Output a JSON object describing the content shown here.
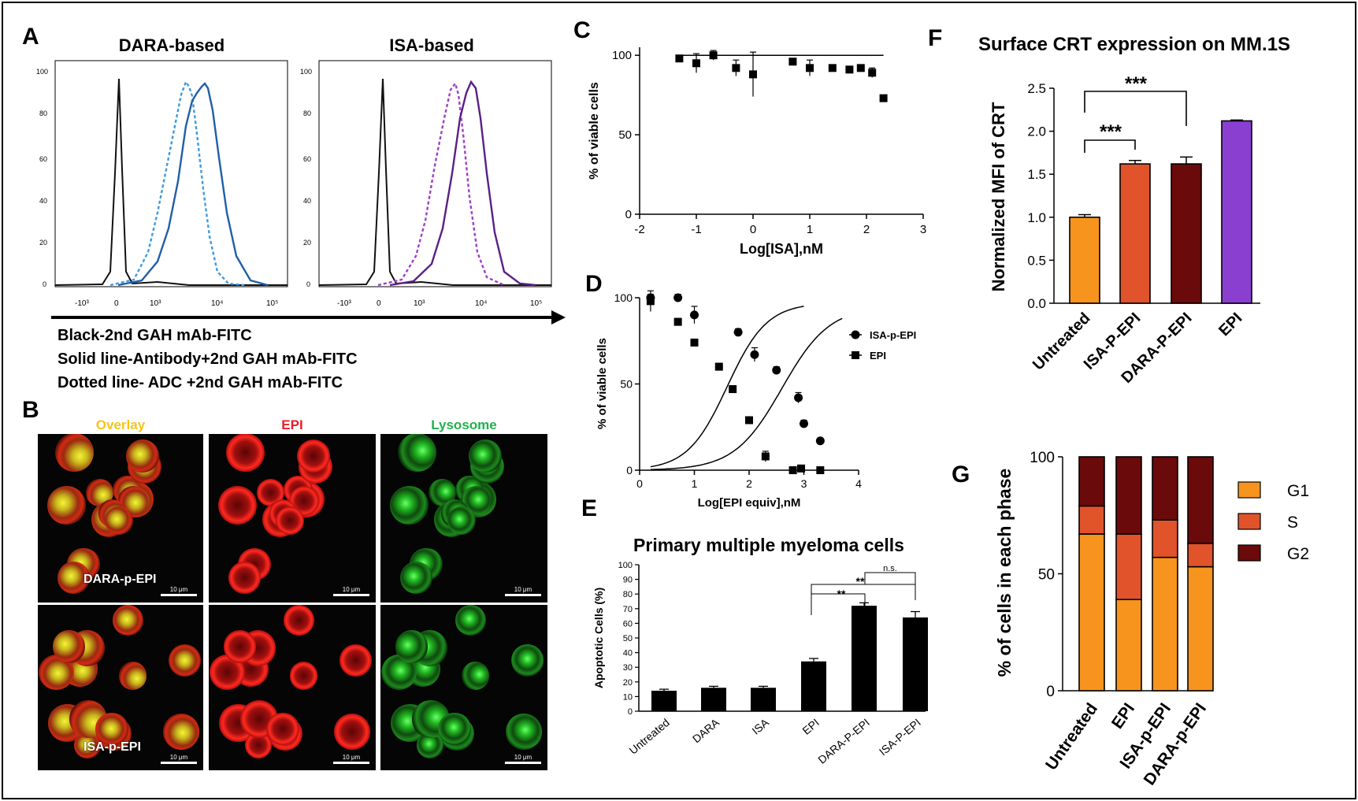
{
  "panel_letters": [
    "A",
    "B",
    "C",
    "D",
    "E",
    "F",
    "G"
  ],
  "panelA": {
    "titles": [
      "DARA-based",
      "ISA-based"
    ],
    "y_ticks": [
      "0",
      "20",
      "40",
      "60",
      "80",
      "100"
    ],
    "x_ticks": [
      "-10³",
      "0",
      "10³",
      "10⁴",
      "10⁵"
    ],
    "legend": [
      "Black-2nd GAH mAb-FITC",
      "Solid line-Antibody+2nd GAH mAb-FITC",
      "Dotted line- ADC +2nd GAH mAb-FITC"
    ]
  },
  "panelB": {
    "columns": [
      "Overlay",
      "EPI",
      "Lysosome"
    ],
    "column_colors": [
      "#f5c518",
      "#e8202a",
      "#1fb24a"
    ],
    "rows": [
      "DARA-p-EPI",
      "ISA-p-EPI"
    ],
    "scale_bar": "10 μm"
  },
  "colors": {
    "dara_solid": "#1f5fa8",
    "dara_dotted": "#3d9ae0",
    "isa_solid": "#5a1f86",
    "isa_dotted": "#a03ec8",
    "untreated": "#f7941d",
    "isa_p_epi": "#e0532b",
    "dara_p_epi": "#6b0a0a",
    "epi": "#8a3fd1",
    "g1": "#f7941d",
    "s": "#e0532b",
    "g2": "#6b0a0a"
  },
  "chart_data": [
    {
      "panel": "C",
      "type": "scatter",
      "xlabel": "Log[ISA],nM",
      "ylabel": "% of viable cells",
      "xlim": [
        -2,
        3
      ],
      "ylim": [
        0,
        110
      ],
      "x_ticks": [
        -2,
        -1,
        0,
        1,
        2,
        3
      ],
      "y_ticks": [
        0,
        50,
        100
      ],
      "points": [
        {
          "x": -1.3,
          "y": 98,
          "err": 2
        },
        {
          "x": -1.0,
          "y": 95,
          "err": 6
        },
        {
          "x": -0.7,
          "y": 100,
          "err": 3
        },
        {
          "x": -0.3,
          "y": 92,
          "err": 5
        },
        {
          "x": 0.0,
          "y": 88,
          "err": 14
        },
        {
          "x": 0.7,
          "y": 96,
          "err": 2
        },
        {
          "x": 1.0,
          "y": 92,
          "err": 5
        },
        {
          "x": 1.4,
          "y": 92,
          "err": 2
        },
        {
          "x": 1.7,
          "y": 91,
          "err": 2
        },
        {
          "x": 1.9,
          "y": 92,
          "err": 2
        },
        {
          "x": 2.1,
          "y": 89,
          "err": 3
        },
        {
          "x": 2.3,
          "y": 73,
          "err": 1
        }
      ],
      "fit": {
        "top": 100,
        "bottom": 0,
        "ec50": 3.6,
        "hill": 0.7,
        "x_range": [
          -1.3,
          2.3
        ]
      }
    },
    {
      "panel": "D",
      "type": "scatter",
      "xlabel": "Log[EPI equiv],nM",
      "ylabel": "% of viable cells",
      "xlim": [
        0,
        4
      ],
      "ylim": [
        0,
        100
      ],
      "x_ticks": [
        0,
        1,
        2,
        3,
        4
      ],
      "y_ticks": [
        0,
        50,
        100
      ],
      "series": [
        {
          "name": "ISA-p-EPI",
          "marker": "circle",
          "points": [
            {
              "x": 0.2,
              "y": 100,
              "err": 2
            },
            {
              "x": 0.7,
              "y": 100,
              "err": 2
            },
            {
              "x": 1.0,
              "y": 90,
              "err": 5
            },
            {
              "x": 1.8,
              "y": 80,
              "err": 2
            },
            {
              "x": 2.1,
              "y": 67,
              "err": 4
            },
            {
              "x": 2.5,
              "y": 58,
              "err": 2
            },
            {
              "x": 2.9,
              "y": 42,
              "err": 3
            },
            {
              "x": 3.0,
              "y": 27,
              "err": 2
            },
            {
              "x": 3.3,
              "y": 17,
              "err": 1
            }
          ],
          "fit": {
            "top": 95,
            "bottom": 0,
            "logec50": 2.6,
            "hill": -1.0,
            "x_range": [
              0.2,
              3.7
            ]
          }
        },
        {
          "name": "EPI",
          "marker": "square",
          "points": [
            {
              "x": 0.2,
              "y": 98,
              "err": 6
            },
            {
              "x": 0.7,
              "y": 86,
              "err": 2
            },
            {
              "x": 1.0,
              "y": 74,
              "err": 2
            },
            {
              "x": 1.45,
              "y": 60,
              "err": 2
            },
            {
              "x": 1.7,
              "y": 47,
              "err": 2
            },
            {
              "x": 2.0,
              "y": 29,
              "err": 2
            },
            {
              "x": 2.3,
              "y": 8,
              "err": 3
            },
            {
              "x": 2.8,
              "y": 0,
              "err": 2
            },
            {
              "x": 2.95,
              "y": 1,
              "err": 1
            },
            {
              "x": 3.3,
              "y": 0,
              "err": 1
            }
          ],
          "fit": {
            "top": 97,
            "bottom": 0,
            "logec50": 1.6,
            "hill": -1.2,
            "x_range": [
              0.2,
              3.0
            ]
          }
        }
      ]
    },
    {
      "panel": "E",
      "type": "bar",
      "title": "Primary multiple myeloma cells",
      "ylabel": "Apoptotic Cells (%)",
      "ylim": [
        0,
        100
      ],
      "y_ticks": [
        0,
        10,
        20,
        30,
        40,
        50,
        60,
        70,
        80,
        90,
        100
      ],
      "categories": [
        "Untreated",
        "DARA",
        "ISA",
        "EPI",
        "DARA-P-EPI",
        "ISA-P-EPI"
      ],
      "values": [
        14,
        16,
        16,
        34,
        72,
        64
      ],
      "errors": [
        1,
        1,
        1,
        2,
        2,
        4
      ],
      "annotations": [
        "**",
        "**",
        "n.s."
      ]
    },
    {
      "panel": "F",
      "type": "bar",
      "title": "Surface CRT expression on MM.1S",
      "ylabel": "Normalized MFI of CRT",
      "ylim": [
        0,
        2.5
      ],
      "y_ticks": [
        "0.0",
        "0.5",
        "1.0",
        "1.5",
        "2.0",
        "2.5"
      ],
      "categories": [
        "Untreated",
        "ISA-P-EPI",
        "DARA-P-EPI",
        "EPI"
      ],
      "values": [
        1.0,
        1.62,
        1.62,
        2.12
      ],
      "errors": [
        0.03,
        0.04,
        0.08,
        0.01
      ],
      "annotations": [
        "***",
        "***"
      ]
    },
    {
      "panel": "G",
      "type": "bar",
      "ylabel": "% of cells in each phase",
      "ylim": [
        0,
        100
      ],
      "y_ticks": [
        0,
        50,
        100
      ],
      "categories": [
        "Untreated",
        "EPI",
        "ISA-p-EPI",
        "DARA-p-EPI"
      ],
      "series": [
        {
          "name": "G1",
          "values": [
            67,
            39,
            57,
            53
          ]
        },
        {
          "name": "S",
          "values": [
            12,
            28,
            16,
            10
          ]
        },
        {
          "name": "G2",
          "values": [
            21,
            33,
            27,
            37
          ]
        }
      ]
    }
  ]
}
